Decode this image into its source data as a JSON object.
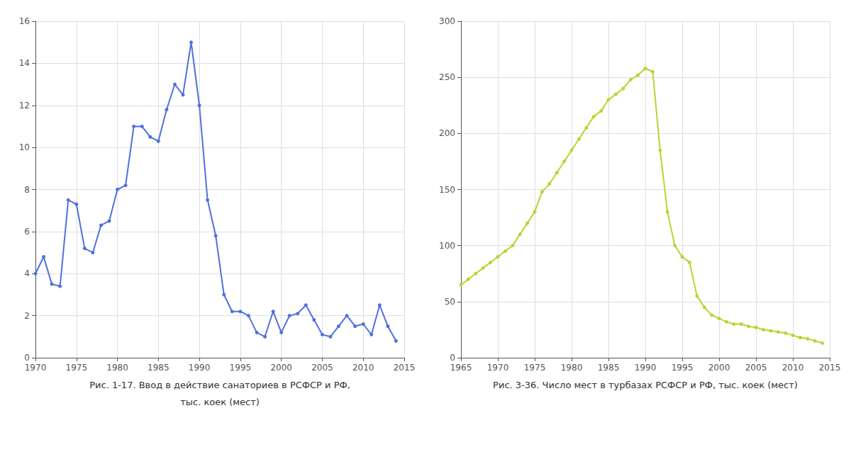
{
  "chart_data": [
    {
      "type": "line",
      "title": "Рис. 1-17. Ввод в действие санаториев в РСФСР и РФ,",
      "subtitle": "тыс. коек (мест)",
      "x": [
        1970,
        1971,
        1972,
        1973,
        1974,
        1975,
        1976,
        1977,
        1978,
        1979,
        1980,
        1981,
        1982,
        1983,
        1984,
        1985,
        1986,
        1987,
        1988,
        1989,
        1990,
        1991,
        1992,
        1993,
        1994,
        1995,
        1996,
        1997,
        1998,
        1999,
        2000,
        2001,
        2002,
        2003,
        2004,
        2005,
        2006,
        2007,
        2008,
        2009,
        2010,
        2011,
        2012,
        2013,
        2014
      ],
      "values": [
        4.0,
        4.8,
        3.5,
        3.4,
        7.5,
        7.3,
        5.2,
        5.0,
        6.3,
        6.5,
        8.0,
        8.2,
        11.0,
        11.0,
        10.5,
        10.3,
        11.8,
        13.0,
        12.5,
        15.0,
        12.0,
        7.5,
        5.8,
        3.0,
        2.2,
        2.2,
        2.0,
        1.2,
        1.0,
        2.2,
        1.2,
        2.0,
        2.1,
        2.5,
        1.8,
        1.1,
        1.0,
        1.5,
        2.0,
        1.5,
        1.6,
        1.1,
        2.5,
        1.5,
        0.8
      ],
      "xlim": [
        1970,
        2015
      ],
      "xticks": [
        1970,
        1975,
        1980,
        1985,
        1990,
        1995,
        2000,
        2005,
        2010,
        2015
      ],
      "ylim": [
        0,
        16
      ],
      "yticks": [
        0,
        2,
        4,
        6,
        8,
        10,
        12,
        14,
        16
      ],
      "grid": true,
      "marker": "circle"
    },
    {
      "type": "line",
      "title": "Рис. 3-36. Число мест в турбазах РСФСР и РФ, тыс. коек (мест)",
      "x": [
        1965,
        1966,
        1967,
        1968,
        1969,
        1970,
        1971,
        1972,
        1973,
        1974,
        1975,
        1976,
        1977,
        1978,
        1979,
        1980,
        1981,
        1982,
        1983,
        1984,
        1985,
        1986,
        1987,
        1988,
        1989,
        1990,
        1991,
        1992,
        1993,
        1994,
        1995,
        1996,
        1997,
        1998,
        1999,
        2000,
        2001,
        2002,
        2003,
        2004,
        2005,
        2006,
        2007,
        2008,
        2009,
        2010,
        2011,
        2012,
        2013,
        2014
      ],
      "values": [
        65,
        70,
        75,
        80,
        85,
        90,
        95,
        100,
        110,
        120,
        130,
        148,
        155,
        165,
        175,
        185,
        195,
        205,
        215,
        220,
        230,
        235,
        240,
        248,
        252,
        258,
        255,
        185,
        130,
        100,
        90,
        85,
        55,
        45,
        38,
        35,
        32,
        30,
        30,
        28,
        27,
        25,
        24,
        23,
        22,
        20,
        18,
        17,
        15,
        13
      ],
      "xlim": [
        1965,
        2015
      ],
      "xticks": [
        1965,
        1970,
        1975,
        1980,
        1985,
        1990,
        1995,
        2000,
        2005,
        2010,
        2015
      ],
      "ylim": [
        0,
        300
      ],
      "yticks": [
        0,
        50,
        100,
        150,
        200,
        250,
        300
      ],
      "grid": true,
      "marker": "circle"
    }
  ]
}
